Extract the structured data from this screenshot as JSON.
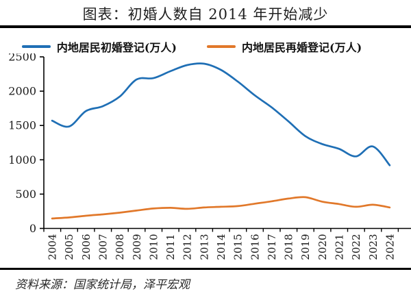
{
  "title": "图表：初婚人数自 2014 年开始减少",
  "source": "资料来源：国家统计局，泽平宏观",
  "colors": {
    "first_marriage": "#1F6FB5",
    "remarriage": "#E1782A",
    "axis": "#000000"
  },
  "legend": [
    {
      "label": "内地居民初婚登记(万人)",
      "color": "#1F6FB5"
    },
    {
      "label": "内地居民再婚登记(万人)",
      "color": "#E1782A"
    }
  ],
  "chart_data": {
    "type": "line",
    "title": "图表：初婚人数自 2014 年开始减少",
    "x": [
      2004,
      2005,
      2006,
      2007,
      2008,
      2009,
      2010,
      2011,
      2012,
      2013,
      2014,
      2015,
      2016,
      2017,
      2018,
      2019,
      2020,
      2021,
      2022,
      2023,
      2024
    ],
    "series": [
      {
        "name": "内地居民初婚登记(万人)",
        "color": "#1F6FB5",
        "values": [
          1570,
          1485,
          1710,
          1780,
          1920,
          2170,
          2190,
          2290,
          2380,
          2400,
          2310,
          2140,
          1940,
          1765,
          1560,
          1345,
          1230,
          1160,
          1050,
          1195,
          920
        ]
      },
      {
        "name": "内地居民再婚登记(万人)",
        "color": "#E1782A",
        "values": [
          145,
          160,
          185,
          205,
          230,
          260,
          290,
          300,
          285,
          305,
          315,
          325,
          360,
          395,
          435,
          455,
          390,
          355,
          315,
          345,
          305
        ]
      }
    ],
    "ylim": [
      0,
      2500
    ],
    "yticks": [
      0,
      500,
      1000,
      1500,
      2000,
      2500
    ],
    "xlabel": "",
    "ylabel": "",
    "grid": false,
    "legend_position": "top",
    "line_style": "smooth"
  }
}
